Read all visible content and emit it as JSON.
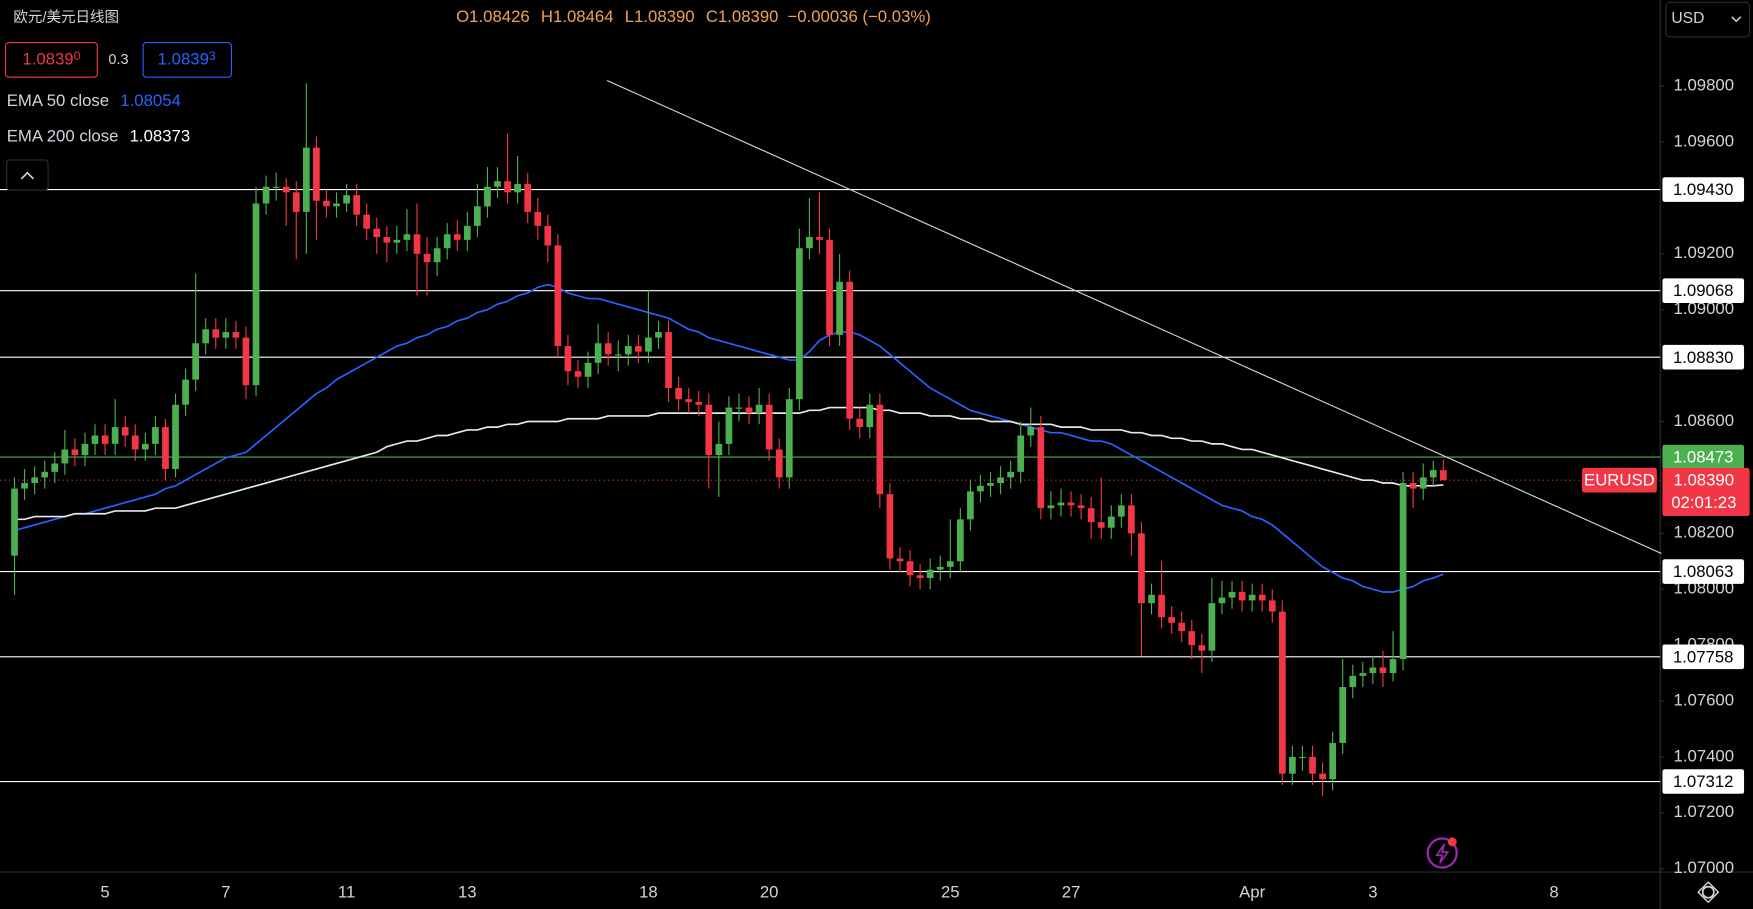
{
  "header": {
    "title": "欧元/美元日线图",
    "ohlc": [
      {
        "key": "O",
        "value": "1.08426"
      },
      {
        "key": "H",
        "value": "1.08464"
      },
      {
        "key": "L",
        "value": "1.08390"
      },
      {
        "key": "C",
        "value": "1.08390"
      }
    ],
    "change": "−0.00036 (−0.03%)",
    "bid": {
      "main": "1.0839",
      "pip": "0"
    },
    "spread": "0.3",
    "ask": {
      "main": "1.0839",
      "pip": "3"
    },
    "currency": "USD"
  },
  "chart_data": {
    "type": "candlestick",
    "up_color": "#4caf50",
    "down_color": "#f23645",
    "categories": [
      null,
      null,
      null,
      null,
      null,
      null,
      null,
      null,
      null,
      "5",
      null,
      null,
      null,
      null,
      null,
      null,
      null,
      null,
      null,
      null,
      null,
      "7",
      null,
      null,
      null,
      null,
      null,
      null,
      null,
      null,
      null,
      null,
      null,
      "11",
      null,
      null,
      null,
      null,
      null,
      null,
      null,
      null,
      null,
      null,
      null,
      "13",
      null,
      null,
      null,
      null,
      null,
      null,
      null,
      null,
      null,
      null,
      null,
      null,
      null,
      null,
      null,
      null,
      null,
      "18",
      null,
      null,
      null,
      null,
      null,
      null,
      null,
      null,
      null,
      null,
      null,
      "20",
      null,
      null,
      null,
      null,
      null,
      null,
      null,
      null,
      null,
      null,
      null,
      null,
      null,
      null,
      null,
      null,
      null,
      "25",
      null,
      null,
      null,
      null,
      null,
      null,
      null,
      null,
      null,
      null,
      null,
      "27",
      null,
      null,
      null,
      null,
      null,
      null,
      null,
      null,
      null,
      null,
      null,
      null,
      null,
      null,
      null,
      null,
      null,
      "Apr",
      null,
      null,
      null,
      null,
      null,
      null,
      null,
      null,
      null,
      null,
      null,
      "3",
      null,
      null,
      null,
      null,
      null,
      null,
      null,
      null,
      null,
      null,
      null,
      null,
      null,
      null,
      null,
      null,
      null,
      "8"
    ],
    "open": [
      1.0812,
      1.0836,
      1.0838,
      1.084,
      1.0842,
      1.0845,
      1.085,
      1.0848,
      1.0852,
      1.0855,
      1.0852,
      1.0858,
      1.0855,
      1.085,
      1.0852,
      1.0858,
      1.0843,
      1.0866,
      1.0875,
      1.0888,
      1.0893,
      1.089,
      1.0892,
      1.089,
      1.0873,
      1.0938,
      1.0944,
      1.0944,
      1.0942,
      1.0935,
      1.0958,
      1.0939,
      1.0937,
      1.0938,
      1.0941,
      1.0934,
      1.0929,
      1.0926,
      1.0924,
      1.0925,
      1.0927,
      1.092,
      1.0917,
      1.0922,
      1.0927,
      1.0925,
      1.093,
      1.0937,
      1.0944,
      1.0946,
      1.0942,
      1.0945,
      1.0935,
      1.093,
      1.0923,
      1.0887,
      1.0878,
      1.0876,
      1.0881,
      1.0888,
      1.0884,
      1.0884,
      1.0887,
      1.0885,
      1.089,
      1.0892,
      1.0872,
      1.0868,
      1.0867,
      1.0866,
      1.0848,
      1.0852,
      1.0865,
      1.0865,
      1.0863,
      1.0866,
      1.085,
      1.084,
      1.0868,
      1.0922,
      1.0926,
      1.0925,
      1.0891,
      1.091,
      1.0861,
      1.0858,
      1.0866,
      1.0834,
      1.0811,
      1.081,
      1.0805,
      1.0804,
      1.0807,
      1.0808,
      1.081,
      1.0825,
      1.0835,
      1.0837,
      1.0838,
      1.084,
      1.0842,
      1.0855,
      1.0858,
      1.0829,
      1.083,
      1.0831,
      1.083,
      1.0829,
      1.0824,
      1.0822,
      1.0826,
      1.083,
      1.082,
      1.0795,
      1.0798,
      1.079,
      1.0788,
      1.0785,
      1.078,
      1.0778,
      1.0795,
      1.0797,
      1.0799,
      1.0796,
      1.0798,
      1.0796,
      1.0792,
      1.0734,
      1.074,
      1.074,
      1.0734,
      1.0732,
      1.0745,
      1.0765,
      1.0769,
      1.077,
      1.0772,
      1.077,
      1.0775,
      1.0838,
      1.0836,
      1.084,
      1.08426,
      null,
      null,
      null,
      null,
      null,
      null,
      null,
      null,
      null,
      null,
      null
    ],
    "high": [
      1.084,
      1.0843,
      1.0844,
      1.0846,
      1.0849,
      1.0857,
      1.0854,
      1.0856,
      1.0859,
      1.0859,
      1.0868,
      1.0862,
      1.0859,
      1.0856,
      1.0862,
      1.0861,
      1.087,
      1.0879,
      1.0913,
      1.0897,
      1.0897,
      1.0897,
      1.0896,
      1.0894,
      1.0944,
      1.0948,
      1.0949,
      1.0947,
      1.0946,
      1.0981,
      1.0962,
      1.0943,
      1.0942,
      1.0945,
      1.0945,
      1.0938,
      1.0933,
      1.093,
      1.093,
      1.0936,
      1.0938,
      1.0926,
      1.0926,
      1.0931,
      1.0932,
      1.0935,
      1.0945,
      1.0951,
      1.0951,
      1.0963,
      1.0955,
      1.0949,
      1.094,
      1.0934,
      1.0927,
      1.0891,
      1.0882,
      1.0885,
      1.0895,
      1.0892,
      1.0889,
      1.0891,
      1.0891,
      1.0907,
      1.0896,
      1.0896,
      1.0876,
      1.0872,
      1.0871,
      1.087,
      1.086,
      1.0869,
      1.087,
      1.0869,
      1.0872,
      1.087,
      1.0854,
      1.0872,
      1.0929,
      1.094,
      1.0942,
      1.0929,
      1.092,
      1.0914,
      1.0865,
      1.087,
      1.087,
      1.0838,
      1.0815,
      1.0814,
      1.0809,
      1.0811,
      1.0812,
      1.0825,
      1.0829,
      1.0839,
      1.0841,
      1.0842,
      1.0844,
      1.0846,
      1.086,
      1.0865,
      1.0862,
      1.0835,
      1.0836,
      1.0835,
      1.0834,
      1.0833,
      1.084,
      1.083,
      1.0834,
      1.0834,
      1.0824,
      1.0802,
      1.081,
      1.0794,
      1.0792,
      1.0789,
      1.0784,
      1.0804,
      1.0803,
      1.0803,
      1.0803,
      1.0802,
      1.0802,
      1.08,
      1.0796,
      1.0744,
      1.0744,
      1.0744,
      1.0738,
      1.0749,
      1.0775,
      1.0773,
      1.0774,
      1.0776,
      1.0778,
      1.0785,
      1.0842,
      1.0842,
      1.0845,
      1.0846,
      1.08464,
      null,
      null,
      null,
      null,
      null,
      null,
      null,
      null,
      null,
      null,
      null
    ],
    "low": [
      1.0798,
      1.0832,
      1.0834,
      1.0836,
      1.0838,
      1.0841,
      1.0844,
      1.0844,
      1.0848,
      1.0848,
      1.0848,
      1.0851,
      1.0846,
      1.0846,
      1.0848,
      1.0839,
      1.084,
      1.0862,
      1.0871,
      1.0884,
      1.0886,
      1.0886,
      1.0886,
      1.0868,
      1.0869,
      1.0934,
      1.0939,
      1.093,
      1.0918,
      1.092,
      1.0925,
      1.0933,
      1.0933,
      1.0935,
      1.093,
      1.0925,
      1.092,
      1.0917,
      1.092,
      1.0921,
      1.0905,
      1.0905,
      1.0912,
      1.0918,
      1.0921,
      1.0921,
      1.0926,
      1.0933,
      1.094,
      1.0938,
      1.0938,
      1.0931,
      1.0925,
      1.0917,
      1.0883,
      1.0873,
      1.0872,
      1.0872,
      1.0877,
      1.088,
      1.0878,
      1.088,
      1.0881,
      1.0881,
      1.0886,
      1.0867,
      1.0864,
      1.0863,
      1.0862,
      1.0836,
      1.0833,
      1.0848,
      1.086,
      1.0859,
      1.0859,
      1.0846,
      1.0836,
      1.0836,
      1.0864,
      1.0918,
      1.092,
      1.0887,
      1.0887,
      1.0857,
      1.0854,
      1.0854,
      1.0829,
      1.0807,
      1.0806,
      1.0801,
      1.08,
      1.08,
      1.0803,
      1.0804,
      1.0806,
      1.0821,
      1.0831,
      1.0833,
      1.0834,
      1.0836,
      1.0838,
      1.0851,
      1.0825,
      1.0825,
      1.0826,
      1.0826,
      1.0825,
      1.0818,
      1.0818,
      1.0818,
      1.0822,
      1.0812,
      1.0776,
      1.0791,
      1.0786,
      1.0784,
      1.0781,
      1.0775,
      1.077,
      1.0774,
      1.0791,
      1.0793,
      1.0792,
      1.0792,
      1.0792,
      1.0788,
      1.073,
      1.073,
      1.0735,
      1.073,
      1.0726,
      1.0728,
      1.0741,
      1.0761,
      1.0765,
      1.0766,
      1.0765,
      1.0767,
      1.0771,
      1.0829,
      1.0832,
      1.0837,
      1.0839,
      null,
      null,
      null,
      null,
      null,
      null,
      null,
      null,
      null,
      null,
      null
    ],
    "close": [
      1.0836,
      1.0838,
      1.084,
      1.0842,
      1.0845,
      1.085,
      1.0848,
      1.0852,
      1.0855,
      1.0852,
      1.0858,
      1.0855,
      1.085,
      1.0852,
      1.0858,
      1.0843,
      1.0866,
      1.0875,
      1.0888,
      1.0893,
      1.089,
      1.0892,
      1.089,
      1.0873,
      1.0938,
      1.0944,
      1.0944,
      1.0942,
      1.0935,
      1.0958,
      1.0939,
      1.0937,
      1.0938,
      1.0941,
      1.0934,
      1.0929,
      1.0926,
      1.0924,
      1.0925,
      1.0927,
      1.092,
      1.0917,
      1.0922,
      1.0927,
      1.0925,
      1.093,
      1.0937,
      1.0944,
      1.0946,
      1.0942,
      1.0945,
      1.0935,
      1.093,
      1.0923,
      1.0887,
      1.0878,
      1.0876,
      1.0881,
      1.0888,
      1.0884,
      1.0884,
      1.0887,
      1.0885,
      1.089,
      1.0892,
      1.0872,
      1.0868,
      1.0867,
      1.0866,
      1.0848,
      1.0852,
      1.0865,
      1.0865,
      1.0863,
      1.0866,
      1.085,
      1.084,
      1.0868,
      1.0922,
      1.0926,
      1.0925,
      1.0891,
      1.091,
      1.0861,
      1.0858,
      1.0866,
      1.0834,
      1.0811,
      1.081,
      1.0805,
      1.0804,
      1.0807,
      1.0808,
      1.081,
      1.0825,
      1.0835,
      1.0837,
      1.0838,
      1.084,
      1.0842,
      1.0855,
      1.0858,
      1.0829,
      1.083,
      1.0831,
      1.083,
      1.0829,
      1.0824,
      1.0822,
      1.0826,
      1.083,
      1.082,
      1.0795,
      1.0798,
      1.079,
      1.0788,
      1.0785,
      1.078,
      1.0778,
      1.0795,
      1.0797,
      1.0799,
      1.0796,
      1.0798,
      1.0796,
      1.0792,
      1.0734,
      1.074,
      1.074,
      1.0734,
      1.0732,
      1.0745,
      1.0765,
      1.0769,
      1.077,
      1.0772,
      1.077,
      1.0775,
      1.0838,
      1.0836,
      1.084,
      1.08426,
      1.0839,
      null,
      null,
      null,
      null,
      null,
      null,
      null,
      null,
      null,
      null,
      null
    ],
    "series": [
      {
        "name": "EMA 50 close",
        "color": "#2962ff",
        "values": [
          1.0821,
          1.0822,
          1.0823,
          1.0824,
          1.0825,
          1.0826,
          1.0827,
          1.0827,
          1.0828,
          1.0829,
          1.083,
          1.0831,
          1.0832,
          1.0833,
          1.0834,
          1.0836,
          1.0837,
          1.0839,
          1.0841,
          1.0843,
          1.0845,
          1.0847,
          1.0848,
          1.0849,
          1.0852,
          1.0855,
          1.0858,
          1.0861,
          1.0864,
          1.0867,
          1.087,
          1.0872,
          1.0875,
          1.0877,
          1.0879,
          1.0881,
          1.0883,
          1.0885,
          1.0887,
          1.0888,
          1.089,
          1.0891,
          1.0893,
          1.0894,
          1.0896,
          1.0897,
          1.0899,
          1.09,
          1.0902,
          1.0903,
          1.0905,
          1.0906,
          1.0908,
          1.0909,
          1.0908,
          1.0906,
          1.0905,
          1.0904,
          1.0904,
          1.0903,
          1.0902,
          1.0901,
          1.09,
          1.0899,
          1.0898,
          1.0897,
          1.0895,
          1.0893,
          1.0892,
          1.089,
          1.0889,
          1.0888,
          1.0887,
          1.0886,
          1.0885,
          1.0884,
          1.0883,
          1.0882,
          1.0882,
          1.0885,
          1.0889,
          1.0891,
          1.0892,
          1.0892,
          1.0891,
          1.0889,
          1.0887,
          1.0884,
          1.0881,
          1.0878,
          1.0875,
          1.0872,
          1.087,
          1.0868,
          1.0866,
          1.0864,
          1.0863,
          1.0862,
          1.0861,
          1.086,
          1.0859,
          1.0858,
          1.0857,
          1.0856,
          1.0856,
          1.0855,
          1.0854,
          1.0853,
          1.0853,
          1.0852,
          1.085,
          1.0848,
          1.0846,
          1.0844,
          1.0842,
          1.084,
          1.0838,
          1.0836,
          1.0834,
          1.0832,
          1.083,
          1.0829,
          1.0828,
          1.0826,
          1.0825,
          1.0823,
          1.082,
          1.0817,
          1.0814,
          1.0811,
          1.0808,
          1.0806,
          1.0804,
          1.0803,
          1.0801,
          1.08,
          1.0799,
          1.0799,
          1.08,
          1.0801,
          1.0803,
          1.0804,
          1.08054,
          null,
          null,
          null,
          null,
          null,
          null,
          null,
          null,
          null,
          null,
          null
        ]
      },
      {
        "name": "EMA 200 close",
        "color": "#e8e8e8",
        "values": [
          1.0825,
          1.0825,
          1.0826,
          1.0826,
          1.0826,
          1.0826,
          1.0827,
          1.0827,
          1.0827,
          1.0827,
          1.0828,
          1.0828,
          1.0828,
          1.0828,
          1.0829,
          1.0829,
          1.0829,
          1.083,
          1.0831,
          1.0832,
          1.0833,
          1.0834,
          1.0835,
          1.0836,
          1.0837,
          1.0838,
          1.0839,
          1.084,
          1.0841,
          1.0842,
          1.0843,
          1.0844,
          1.0845,
          1.0846,
          1.0847,
          1.0848,
          1.0849,
          1.0851,
          1.0852,
          1.0853,
          1.0853,
          1.0854,
          1.0855,
          1.0855,
          1.0856,
          1.0857,
          1.0857,
          1.0858,
          1.0858,
          1.0859,
          1.0859,
          1.086,
          1.086,
          1.086,
          1.086,
          1.0861,
          1.0861,
          1.0861,
          1.0861,
          1.0862,
          1.0862,
          1.0862,
          1.0862,
          1.0862,
          1.0863,
          1.0863,
          1.0863,
          1.0863,
          1.0863,
          1.0863,
          1.0863,
          1.0863,
          1.0863,
          1.0863,
          1.0863,
          1.0863,
          1.0863,
          1.0863,
          1.0863,
          1.0864,
          1.0864,
          1.0865,
          1.0865,
          1.0865,
          1.0865,
          1.0865,
          1.0864,
          1.0864,
          1.0863,
          1.0863,
          1.0863,
          1.0862,
          1.0862,
          1.0862,
          1.0861,
          1.0861,
          1.0861,
          1.086,
          1.086,
          1.086,
          1.0859,
          1.0859,
          1.0859,
          1.0859,
          1.0858,
          1.0858,
          1.0858,
          1.0857,
          1.0857,
          1.0857,
          1.0857,
          1.0856,
          1.0856,
          1.0855,
          1.0855,
          1.0854,
          1.0854,
          1.0853,
          1.0853,
          1.0852,
          1.0852,
          1.0851,
          1.085,
          1.085,
          1.0849,
          1.0848,
          1.0847,
          1.0846,
          1.0845,
          1.0844,
          1.0843,
          1.0842,
          1.0841,
          1.084,
          1.0839,
          1.0839,
          1.0838,
          1.0838,
          1.0837,
          1.0837,
          1.0837,
          1.0837,
          1.08373,
          null,
          null,
          null,
          null,
          null,
          null,
          null,
          null,
          null,
          null,
          null
        ]
      }
    ],
    "ylim": [
      1.06988,
      1.10108
    ],
    "yticks": [
      {
        "value": 1.07,
        "label": "1.07000"
      },
      {
        "value": 1.072,
        "label": "1.07200"
      },
      {
        "value": 1.074,
        "label": "1.07400"
      },
      {
        "value": 1.076,
        "label": "1.07600"
      },
      {
        "value": 1.078,
        "label": "1.07800"
      },
      {
        "value": 1.08,
        "label": "1.08000"
      },
      {
        "value": 1.082,
        "label": "1.08200"
      },
      {
        "value": 1.086,
        "label": "1.08600"
      },
      {
        "value": 1.09,
        "label": "1.09000"
      },
      {
        "value": 1.092,
        "label": "1.09200"
      },
      {
        "value": 1.096,
        "label": "1.09600"
      },
      {
        "value": 1.098,
        "label": "1.09800"
      }
    ],
    "levels": [
      {
        "value": 1.0943,
        "label": "1.09430",
        "color": "#ffffff"
      },
      {
        "value": 1.09068,
        "label": "1.09068",
        "color": "#ffffff"
      },
      {
        "value": 1.0883,
        "label": "1.08830",
        "color": "#ffffff"
      },
      {
        "value": 1.08473,
        "label": "1.08473",
        "color": "#4caf50"
      },
      {
        "value": 1.08063,
        "label": "1.08063",
        "color": "#ffffff"
      },
      {
        "value": 1.07758,
        "label": "1.07758",
        "color": "#ffffff"
      },
      {
        "value": 1.07312,
        "label": "1.07312",
        "color": "#ffffff"
      }
    ],
    "last_price": {
      "value": 1.0839,
      "label": "1.08390",
      "symbol": "EURUSD",
      "countdown": "02:01:23",
      "color": "#f23645"
    }
  }
}
